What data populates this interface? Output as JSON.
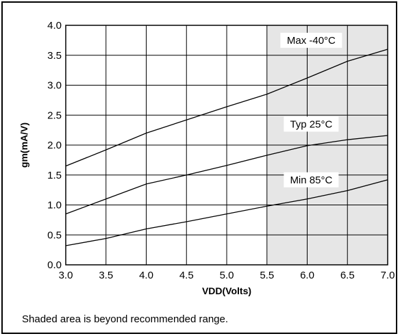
{
  "chart_data": {
    "type": "line",
    "xlabel": "VDD(Volts)",
    "ylabel": "gm(mA/V)",
    "xlim": [
      3.0,
      7.0
    ],
    "ylim": [
      0.0,
      4.0
    ],
    "x_ticks": [
      "3.0",
      "3.5",
      "4.0",
      "4.5",
      "5.0",
      "5.5",
      "6.0",
      "6.5",
      "7.0"
    ],
    "y_ticks": [
      "0.0",
      "0.5",
      "1.0",
      "1.5",
      "2.0",
      "2.5",
      "3.0",
      "3.5",
      "4.0"
    ],
    "grid": true,
    "shaded_region": {
      "x_from": 5.5,
      "x_to": 7.0,
      "color": "#e6e6e6"
    },
    "series": [
      {
        "name": "Max -40°C",
        "x": [
          3.0,
          3.5,
          4.0,
          4.5,
          5.0,
          5.5,
          6.0,
          6.5,
          7.0
        ],
        "y": [
          1.65,
          1.92,
          2.2,
          2.42,
          2.64,
          2.85,
          3.12,
          3.4,
          3.6
        ]
      },
      {
        "name": "Typ 25°C",
        "x": [
          3.0,
          3.5,
          4.0,
          4.5,
          5.0,
          5.5,
          6.0,
          6.5,
          7.0
        ],
        "y": [
          0.85,
          1.1,
          1.35,
          1.5,
          1.66,
          1.83,
          1.99,
          2.09,
          2.16
        ]
      },
      {
        "name": "Min 85°C",
        "x": [
          3.0,
          3.5,
          4.0,
          4.5,
          5.0,
          5.5,
          6.0,
          6.5,
          7.0
        ],
        "y": [
          0.32,
          0.44,
          0.6,
          0.72,
          0.85,
          0.98,
          1.1,
          1.24,
          1.42
        ]
      }
    ],
    "annotations": [
      "Max -40°C",
      "Typ 25°C",
      "Min 85°C"
    ],
    "footnote": "Shaded area is beyond recommended range."
  }
}
